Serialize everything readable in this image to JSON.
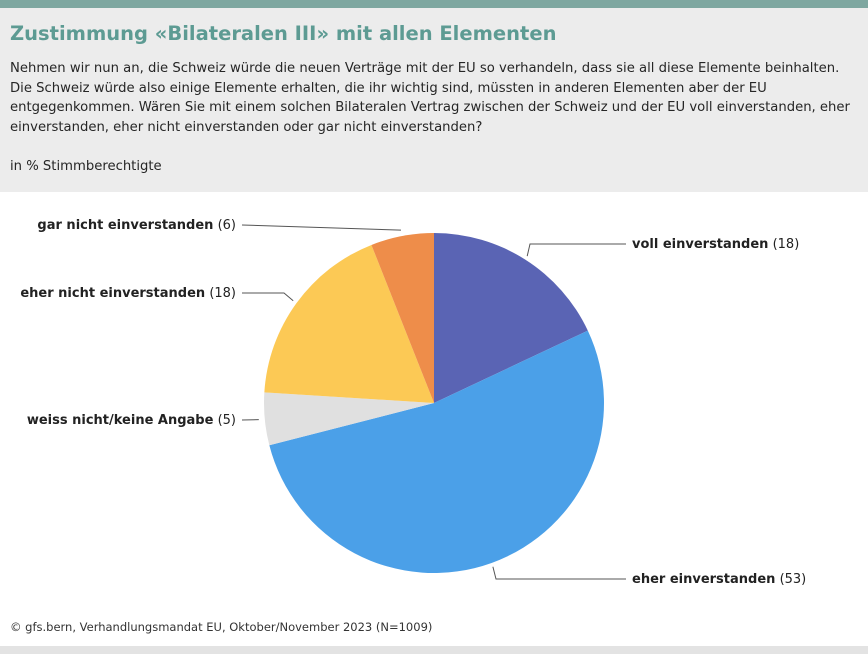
{
  "header": {
    "title": "Zustimmung «Bilateralen III» mit allen Elementen",
    "question": "Nehmen wir nun an, die Schweiz würde die neuen Verträge mit der EU so verhandeln, dass sie all diese Elemente beinhalten. Die Schweiz würde also einige Elemente erhalten, die ihr wichtig sind, müssten in anderen Elementen aber der EU entgegenkommen. Wären Sie mit einem solchen Bilateralen Vertrag zwischen der Schweiz und der EU voll einverstanden, eher einverstanden, eher nicht einverstanden oder gar nicht einverstanden?",
    "unit": "in % Stimmberechtigte"
  },
  "chart_data": {
    "type": "pie",
    "slices": [
      {
        "label": "voll einverstanden",
        "value": 18,
        "value_text": "(18)",
        "color": "#5a64b4"
      },
      {
        "label": "eher einverstanden",
        "value": 53,
        "value_text": "(53)",
        "color": "#4ba0e8"
      },
      {
        "label": "weiss nicht/keine Angabe",
        "value": 5,
        "value_text": "(5)",
        "color": "#e0e0e0"
      },
      {
        "label": "eher nicht einverstanden",
        "value": 18,
        "value_text": "(18)",
        "color": "#fcc955"
      },
      {
        "label": "gar nicht einverstanden",
        "value": 6,
        "value_text": "(6)",
        "color": "#ee8d4a"
      }
    ]
  },
  "footer": {
    "source": "© gfs.bern, Verhandlungsmandat EU, Oktober/November 2023 (N=1009)"
  }
}
